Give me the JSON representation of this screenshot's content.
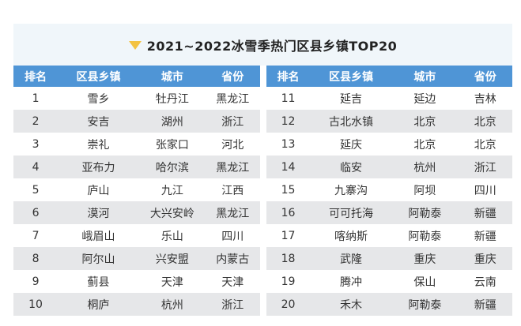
{
  "title": {
    "icon": "triangle-down",
    "text": "2021~2022冰雪季热门区县乡镇TOP20"
  },
  "colors": {
    "header_bg": "#4f95d6",
    "header_text": "#ffffff",
    "row_alt_bg": "#e6e7e9",
    "title_band_bg": "#f0f6fa",
    "accent_triangle": "#f3c242",
    "cell_text": "#333333"
  },
  "tables": [
    {
      "headers": [
        "排名",
        "区县乡镇",
        "城市",
        "省份"
      ],
      "rows": [
        [
          "1",
          "雪乡",
          "牡丹江",
          "黑龙江"
        ],
        [
          "2",
          "安吉",
          "湖州",
          "浙江"
        ],
        [
          "3",
          "崇礼",
          "张家口",
          "河北"
        ],
        [
          "4",
          "亚布力",
          "哈尔滨",
          "黑龙江"
        ],
        [
          "5",
          "庐山",
          "九江",
          "江西"
        ],
        [
          "6",
          "漠河",
          "大兴安岭",
          "黑龙江"
        ],
        [
          "7",
          "峨眉山",
          "乐山",
          "四川"
        ],
        [
          "8",
          "阿尔山",
          "兴安盟",
          "内蒙古"
        ],
        [
          "9",
          "蓟县",
          "天津",
          "天津"
        ],
        [
          "10",
          "桐庐",
          "杭州",
          "浙江"
        ]
      ]
    },
    {
      "headers": [
        "排名",
        "区县乡镇",
        "城市",
        "省份"
      ],
      "rows": [
        [
          "11",
          "延吉",
          "延边",
          "吉林"
        ],
        [
          "12",
          "古北水镇",
          "北京",
          "北京"
        ],
        [
          "13",
          "延庆",
          "北京",
          "北京"
        ],
        [
          "14",
          "临安",
          "杭州",
          "浙江"
        ],
        [
          "15",
          "九寨沟",
          "阿坝",
          "四川"
        ],
        [
          "16",
          "可可托海",
          "阿勒泰",
          "新疆"
        ],
        [
          "17",
          "喀纳斯",
          "阿勒泰",
          "新疆"
        ],
        [
          "18",
          "武隆",
          "重庆",
          "重庆"
        ],
        [
          "19",
          "腾冲",
          "保山",
          "云南"
        ],
        [
          "20",
          "禾木",
          "阿勒泰",
          "新疆"
        ]
      ]
    }
  ],
  "chart_data": {
    "type": "table",
    "title": "2021~2022冰雪季热门区县乡镇TOP20",
    "columns": [
      "排名",
      "区县乡镇",
      "城市",
      "省份"
    ],
    "rows": [
      [
        "1",
        "雪乡",
        "牡丹江",
        "黑龙江"
      ],
      [
        "2",
        "安吉",
        "湖州",
        "浙江"
      ],
      [
        "3",
        "崇礼",
        "张家口",
        "河北"
      ],
      [
        "4",
        "亚布力",
        "哈尔滨",
        "黑龙江"
      ],
      [
        "5",
        "庐山",
        "九江",
        "江西"
      ],
      [
        "6",
        "漠河",
        "大兴安岭",
        "黑龙江"
      ],
      [
        "7",
        "峨眉山",
        "乐山",
        "四川"
      ],
      [
        "8",
        "阿尔山",
        "兴安盟",
        "内蒙古"
      ],
      [
        "9",
        "蓟县",
        "天津",
        "天津"
      ],
      [
        "10",
        "桐庐",
        "杭州",
        "浙江"
      ],
      [
        "11",
        "延吉",
        "延边",
        "吉林"
      ],
      [
        "12",
        "古北水镇",
        "北京",
        "北京"
      ],
      [
        "13",
        "延庆",
        "北京",
        "北京"
      ],
      [
        "14",
        "临安",
        "杭州",
        "浙江"
      ],
      [
        "15",
        "九寨沟",
        "阿坝",
        "四川"
      ],
      [
        "16",
        "可可托海",
        "阿勒泰",
        "新疆"
      ],
      [
        "17",
        "喀纳斯",
        "阿勒泰",
        "新疆"
      ],
      [
        "18",
        "武隆",
        "重庆",
        "重庆"
      ],
      [
        "19",
        "腾冲",
        "保山",
        "云南"
      ],
      [
        "20",
        "禾木",
        "阿勒泰",
        "新疆"
      ]
    ],
    "layout": {
      "split": "two side-by-side tables, ranks 1-10 left, 11-20 right",
      "row_striping": "even rows gray"
    }
  }
}
